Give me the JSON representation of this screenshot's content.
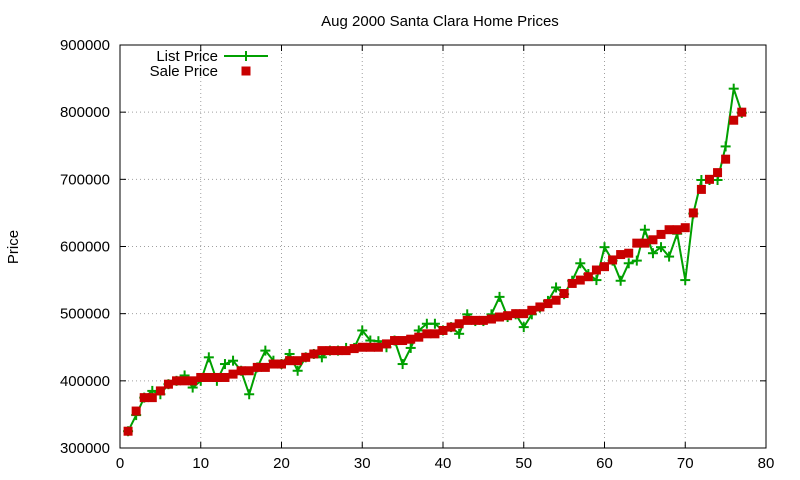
{
  "chart_data": {
    "type": "line",
    "title": "Aug 2000 Santa Clara Home Prices",
    "xlabel": "",
    "ylabel": "Price",
    "xlim": [
      0,
      80
    ],
    "ylim": [
      300000,
      900000
    ],
    "xticks": [
      0,
      10,
      20,
      30,
      40,
      50,
      60,
      70,
      80
    ],
    "yticks": [
      300000,
      400000,
      500000,
      600000,
      700000,
      800000,
      900000
    ],
    "xtick_labels": [
      "0",
      "10",
      "20",
      "30",
      "40",
      "50",
      "60",
      "70",
      "80"
    ],
    "ytick_labels": [
      "300000",
      "400000",
      "500000",
      "600000",
      "700000",
      "800000",
      "900000"
    ],
    "grid": true,
    "legend_position": "top-left",
    "x": [
      1,
      2,
      3,
      4,
      5,
      6,
      7,
      8,
      9,
      10,
      11,
      12,
      13,
      14,
      15,
      16,
      17,
      18,
      19,
      20,
      21,
      22,
      23,
      24,
      25,
      26,
      27,
      28,
      29,
      30,
      31,
      32,
      33,
      34,
      35,
      36,
      37,
      38,
      39,
      40,
      41,
      42,
      43,
      44,
      45,
      46,
      47,
      48,
      49,
      50,
      51,
      52,
      53,
      54,
      55,
      56,
      57,
      58,
      59,
      60,
      61,
      62,
      63,
      64,
      65,
      66,
      67,
      68,
      69,
      70,
      71,
      72,
      73,
      74,
      75,
      76,
      77
    ],
    "series": [
      {
        "name": "List Price",
        "color": "#00a000",
        "marker": "plus",
        "line": true,
        "values": [
          325000,
          349000,
          375000,
          385000,
          380000,
          395000,
          400000,
          408000,
          390000,
          400000,
          435000,
          400000,
          425000,
          430000,
          415000,
          380000,
          420000,
          445000,
          430000,
          425000,
          440000,
          415000,
          435000,
          440000,
          435000,
          445000,
          445000,
          449000,
          449000,
          475000,
          460000,
          459000,
          450000,
          460000,
          425000,
          449000,
          475000,
          485000,
          485000,
          475000,
          480000,
          470000,
          499000,
          489000,
          489000,
          499000,
          525000,
          495000,
          499000,
          480000,
          499000,
          509000,
          519000,
          539000,
          529000,
          549000,
          575000,
          559000,
          550000,
          599000,
          579000,
          549000,
          575000,
          579000,
          625000,
          590000,
          599000,
          585000,
          619000,
          550000,
          649000,
          699000,
          699000,
          699000,
          749000,
          835000,
          799000
        ]
      },
      {
        "name": "Sale Price",
        "color": "#c80000",
        "marker": "square",
        "line": false,
        "values": [
          325000,
          355000,
          375000,
          375000,
          385000,
          395000,
          400000,
          400000,
          400000,
          405000,
          405000,
          405000,
          405000,
          410000,
          415000,
          415000,
          420000,
          420000,
          425000,
          425000,
          430000,
          430000,
          435000,
          440000,
          445000,
          445000,
          445000,
          445000,
          448000,
          450000,
          450000,
          450000,
          455000,
          460000,
          460000,
          462000,
          465000,
          470000,
          470000,
          475000,
          480000,
          485000,
          490000,
          490000,
          490000,
          492000,
          495000,
          497000,
          500000,
          500000,
          505000,
          510000,
          515000,
          520000,
          530000,
          545000,
          550000,
          555000,
          565000,
          570000,
          580000,
          588000,
          590000,
          605000,
          605000,
          610000,
          618000,
          625000,
          625000,
          628000,
          650000,
          685000,
          700000,
          710000,
          730000,
          788000,
          800000
        ]
      }
    ]
  }
}
